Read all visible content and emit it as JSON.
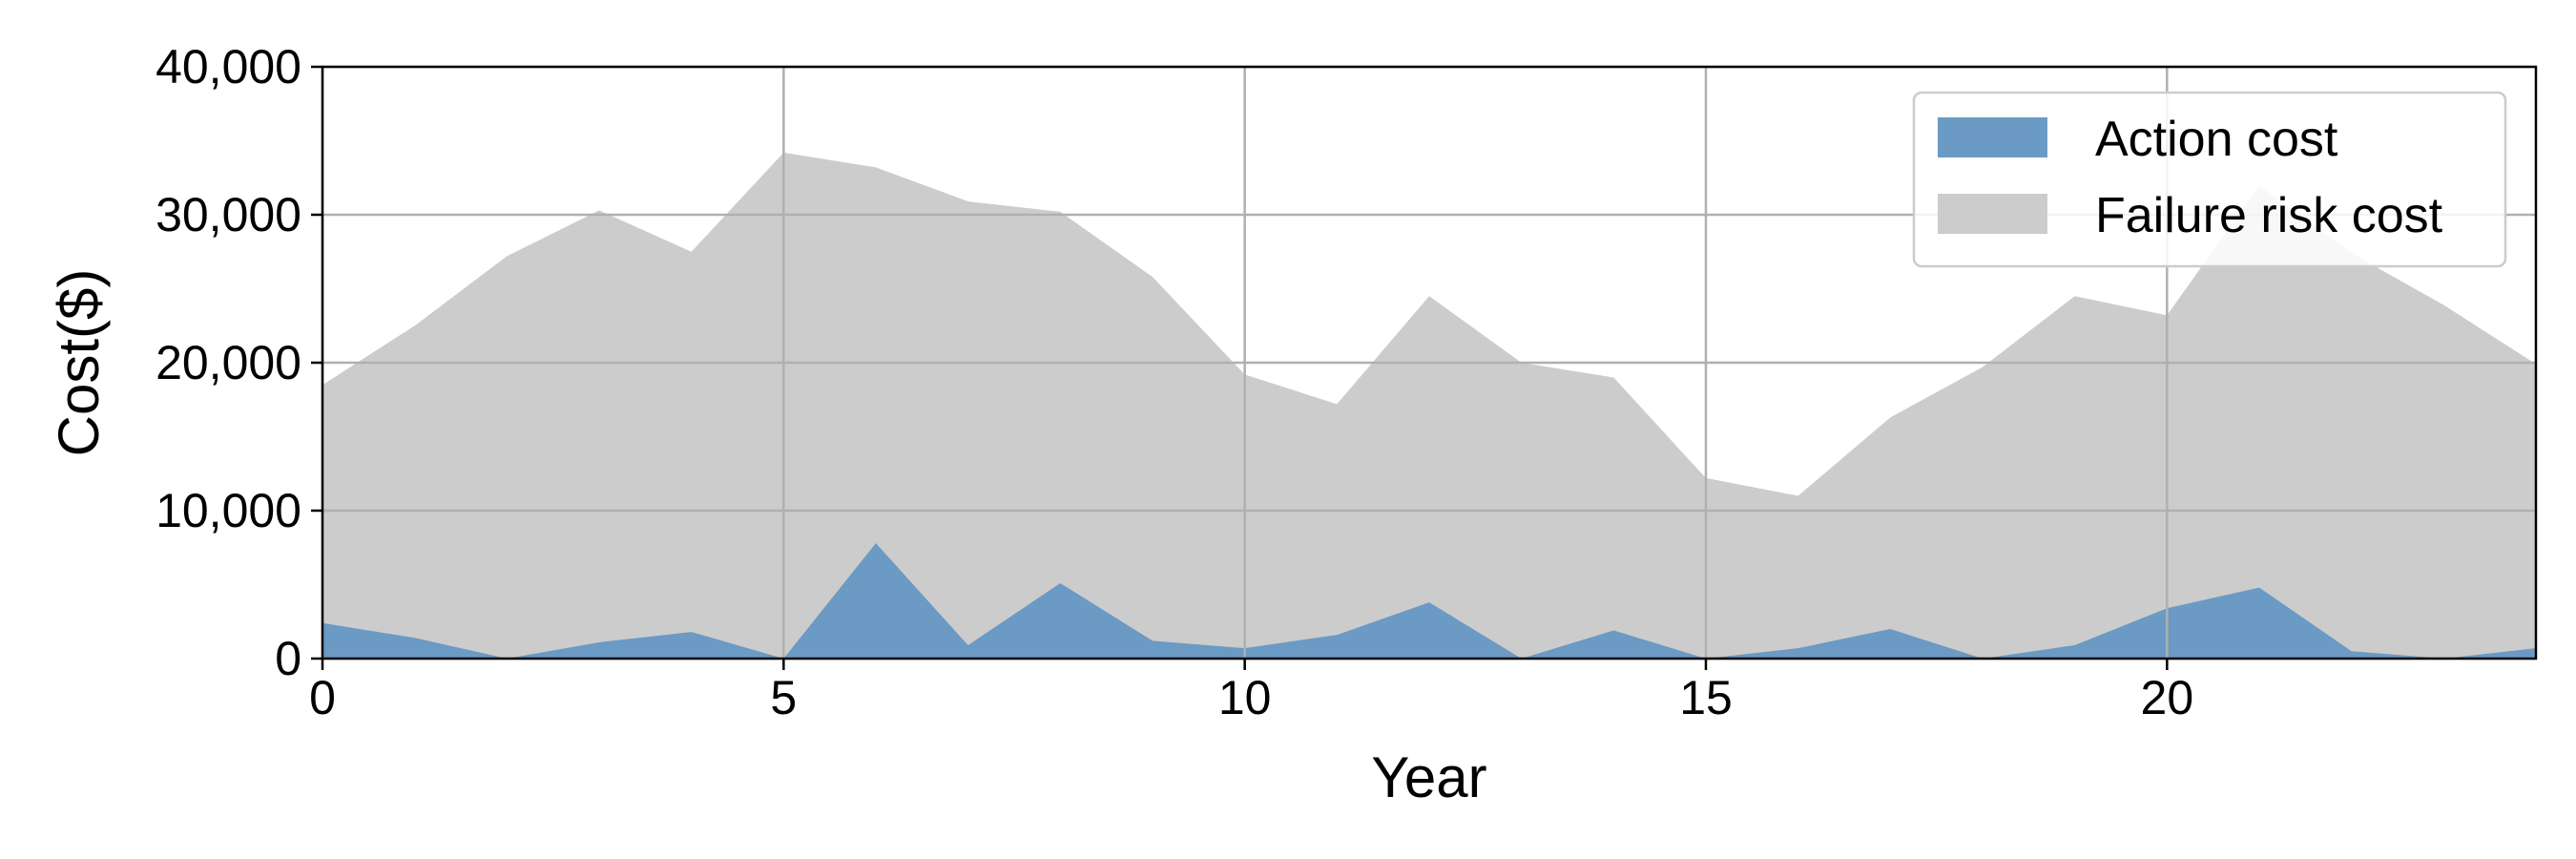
{
  "chart_data": {
    "type": "area",
    "xlabel": "Year",
    "ylabel": "Cost($)",
    "xlim": [
      0,
      24
    ],
    "ylim": [
      0,
      40000
    ],
    "x_ticks": [
      0,
      5,
      10,
      15,
      20
    ],
    "x_tick_labels": [
      "0",
      "5",
      "10",
      "15",
      "20"
    ],
    "y_ticks": [
      0,
      10000,
      20000,
      30000,
      40000
    ],
    "y_tick_labels": [
      "0",
      "10,000",
      "20,000",
      "30,000",
      "40,000"
    ],
    "grid": true,
    "legend_position": "top-right",
    "x": [
      0,
      1,
      2,
      3,
      4,
      5,
      6,
      7,
      8,
      9,
      10,
      11,
      12,
      13,
      14,
      15,
      16,
      17,
      18,
      19,
      20,
      21,
      22,
      23,
      24
    ],
    "series": [
      {
        "name": "Failure risk cost",
        "color": "#cccccc",
        "values": [
          18500,
          22500,
          27200,
          30300,
          27500,
          34200,
          33200,
          30900,
          30200,
          25800,
          19200,
          17200,
          24500,
          20000,
          19000,
          12200,
          11000,
          16300,
          19700,
          24500,
          23200,
          32000,
          27400,
          23900,
          19900
        ]
      },
      {
        "name": "Action cost",
        "color": "#6b9ac4",
        "values": [
          2400,
          1400,
          0,
          1100,
          1800,
          0,
          7800,
          900,
          5100,
          1200,
          700,
          1600,
          3800,
          0,
          1900,
          0,
          700,
          2000,
          0,
          900,
          3400,
          4800,
          500,
          0,
          700
        ]
      }
    ],
    "legend": [
      "Action cost",
      "Failure risk cost"
    ]
  }
}
